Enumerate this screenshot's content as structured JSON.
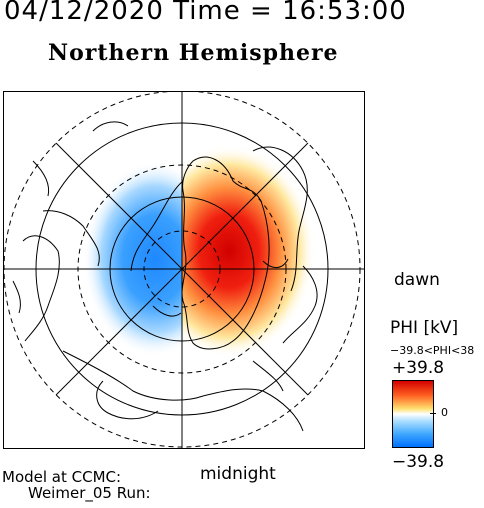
{
  "header": {
    "date_time": "04/12/2020 Time = 16:53:00",
    "hemisphere": "Northern Hemisphere"
  },
  "map": {
    "dawn_label": "dawn",
    "midnight_label": "midnight",
    "field": "electric potential",
    "positive_color": "#e00000",
    "negative_color": "#1e88ff"
  },
  "footer": {
    "model_label": "Model at CCMC:",
    "run_label": "Weimer_05 Run:"
  },
  "colorbar": {
    "title": "PHI [kV]",
    "range_text": "−39.8<PHI<38",
    "max_label": "+39.8",
    "zero_label": "0",
    "min_label": "−39.8",
    "max_value": 39.8,
    "min_value": -39.8
  }
}
